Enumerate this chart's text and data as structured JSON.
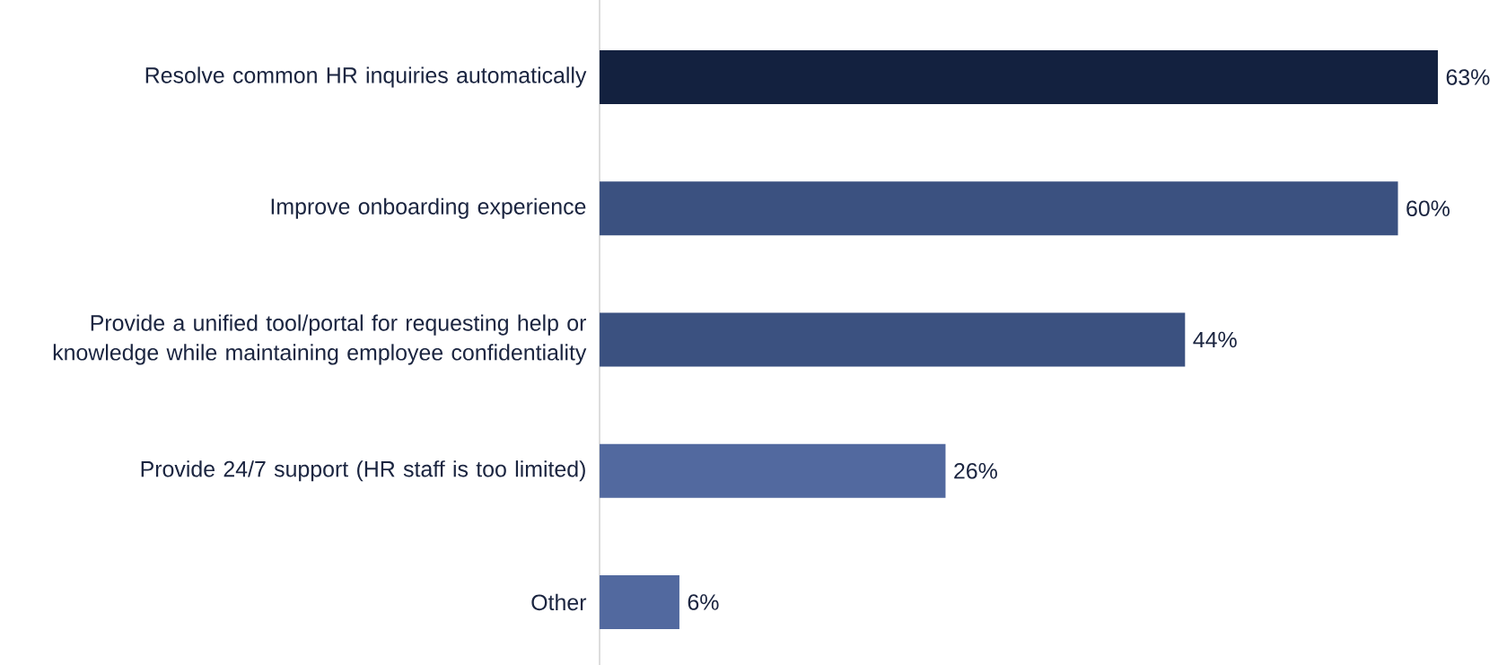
{
  "chart_data": {
    "type": "bar",
    "orientation": "horizontal",
    "categories": [
      "Resolve common HR inquiries automatically",
      "Improve onboarding experience",
      "Provide a unified tool/portal for requesting help or knowledge while maintaining employee confidentiality",
      "Provide 24/7 support (HR staff is too limited)",
      "Other"
    ],
    "values": [
      63,
      60,
      44,
      26,
      6
    ],
    "value_labels": [
      "63%",
      "60%",
      "44%",
      "26%",
      "6%"
    ],
    "colors": [
      "#13213f",
      "#3b5180",
      "#3b5180",
      "#52699f",
      "#52699f"
    ]
  }
}
